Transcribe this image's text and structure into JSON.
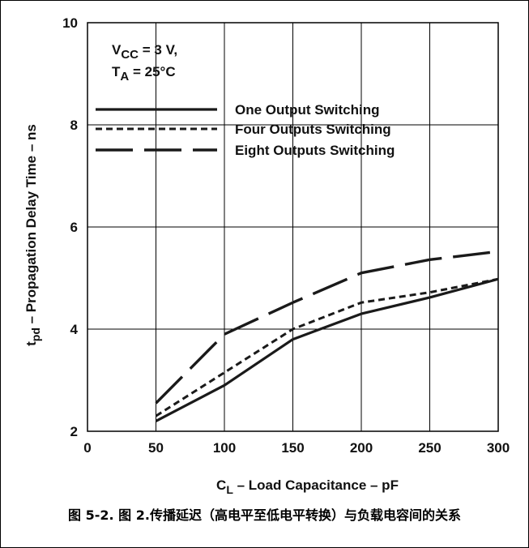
{
  "chart_data": {
    "type": "line",
    "x": [
      50,
      100,
      150,
      200,
      250,
      300
    ],
    "series": [
      {
        "name": "One Output Switching",
        "dash": "solid",
        "values": [
          2.2,
          2.9,
          3.8,
          4.3,
          4.62,
          4.98
        ]
      },
      {
        "name": "Four Outputs Switching",
        "dash": "dotted",
        "values": [
          2.3,
          3.15,
          4.0,
          4.52,
          4.72,
          4.98
        ]
      },
      {
        "name": "Eight Outputs Switching",
        "dash": "long-dash",
        "values": [
          2.55,
          3.9,
          4.52,
          5.1,
          5.36,
          5.52
        ]
      }
    ],
    "xlim": [
      0,
      300
    ],
    "ylim": [
      2,
      10
    ],
    "x_ticks": [
      "0",
      "50",
      "100",
      "150",
      "200",
      "250",
      "300"
    ],
    "y_ticks": [
      "2",
      "4",
      "6",
      "8",
      "10"
    ],
    "xlabel": {
      "main": "C",
      "sub": "L",
      "rest": " – Load Capacitance – pF"
    },
    "ylabel": {
      "main": "t",
      "sub": "pd",
      "rest": " – Propagation Delay Time – ns"
    },
    "conditions": [
      {
        "main": "V",
        "sub": "CC",
        "rest": " = 3 V,"
      },
      {
        "main": "T",
        "sub": "A",
        "rest": " = 25°C"
      }
    ],
    "grid": true,
    "legend_position": "top"
  },
  "caption": "图 5-2. 图 2.传播延迟（高电平至低电平转换）与负载电容间的关系"
}
